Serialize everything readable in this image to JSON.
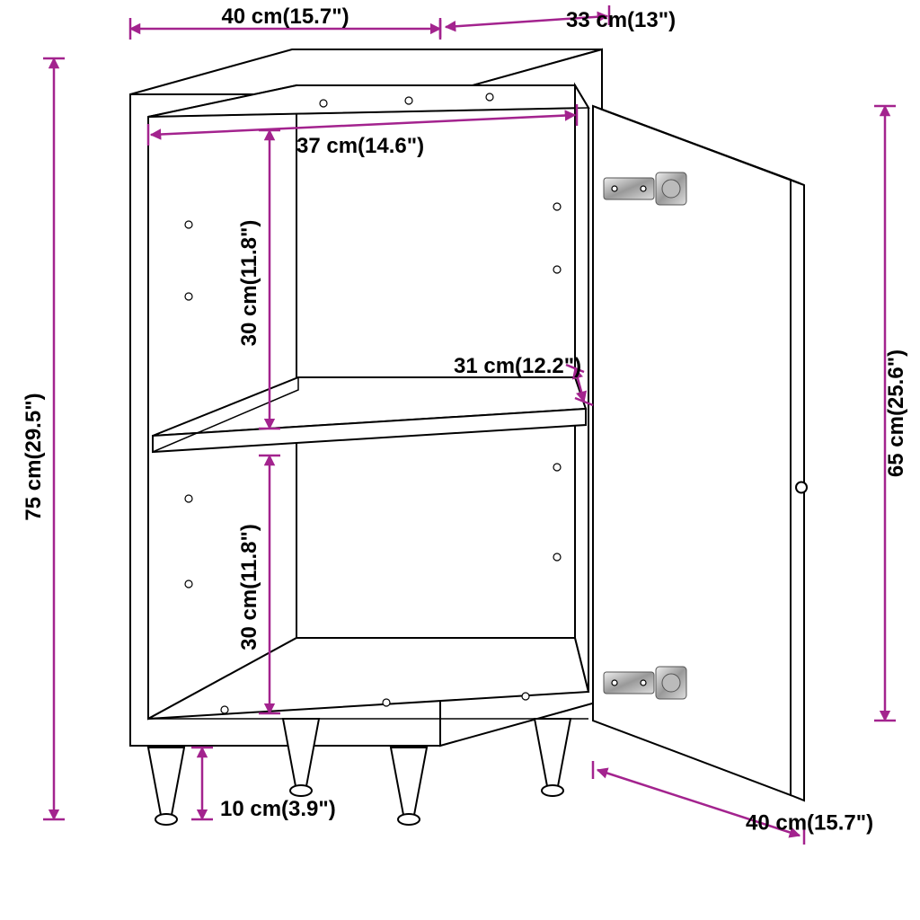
{
  "dimensions": {
    "top_width": {
      "text": "40 cm(15.7\")"
    },
    "top_depth": {
      "text": "33 cm(13\")"
    },
    "inner_width": {
      "text": "37 cm(14.6\")"
    },
    "upper_shelf_h": {
      "text": "30 cm(11.8\")"
    },
    "lower_shelf_h": {
      "text": "30 cm(11.8\")"
    },
    "inner_depth": {
      "text": "31 cm(12.2\")"
    },
    "total_height": {
      "text": "75 cm(29.5\")"
    },
    "door_height": {
      "text": "65 cm(25.6\")"
    },
    "door_width": {
      "text": "40 cm(15.7\")"
    },
    "leg_height": {
      "text": "10 cm(3.9\")"
    }
  },
  "colors": {
    "dim_line": "#a3238e",
    "outline": "#000000",
    "bg": "#ffffff"
  },
  "arrow_size": 10,
  "label_fontsize": 24
}
